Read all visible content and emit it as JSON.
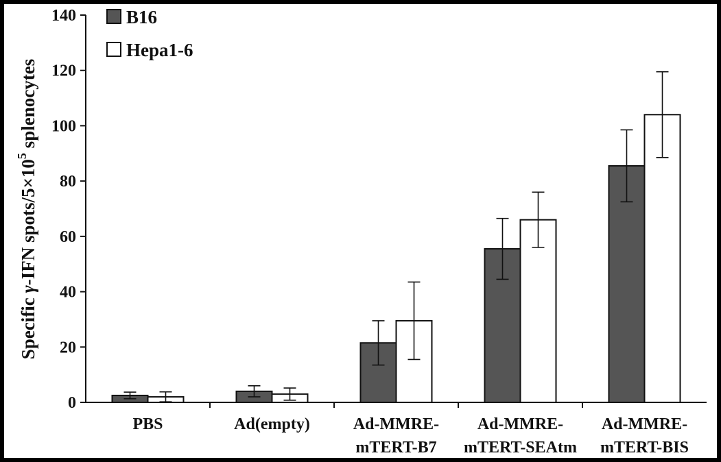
{
  "chart_data": {
    "type": "bar",
    "ylabel_parts": [
      "Specific ",
      "γ",
      "-IFN spots/5×10",
      "5",
      " splenocytes"
    ],
    "ylim": [
      0,
      140
    ],
    "yticks": [
      "0",
      "20",
      "40",
      "60",
      "80",
      "100",
      "120",
      "140"
    ],
    "categories": [
      [
        "PBS"
      ],
      [
        "Ad(empty)"
      ],
      [
        "Ad-MMRE-",
        "mTERT-B7"
      ],
      [
        "Ad-MMRE-",
        "mTERT-SEAtm"
      ],
      [
        "Ad-MMRE-",
        "mTERT-BIS"
      ]
    ],
    "series": [
      {
        "name": "B16",
        "color": "#555555",
        "values": [
          2.5,
          4,
          21.5,
          55.5,
          85.5
        ],
        "errors": [
          1.2,
          2,
          8,
          11,
          13
        ]
      },
      {
        "name": "Hepa1-6",
        "color": "#ffffff",
        "values": [
          2,
          3,
          29.5,
          66,
          104
        ],
        "errors": [
          1.8,
          2.2,
          14,
          10,
          15.5
        ]
      }
    ],
    "legend_position": "top-left",
    "grid": false
  }
}
